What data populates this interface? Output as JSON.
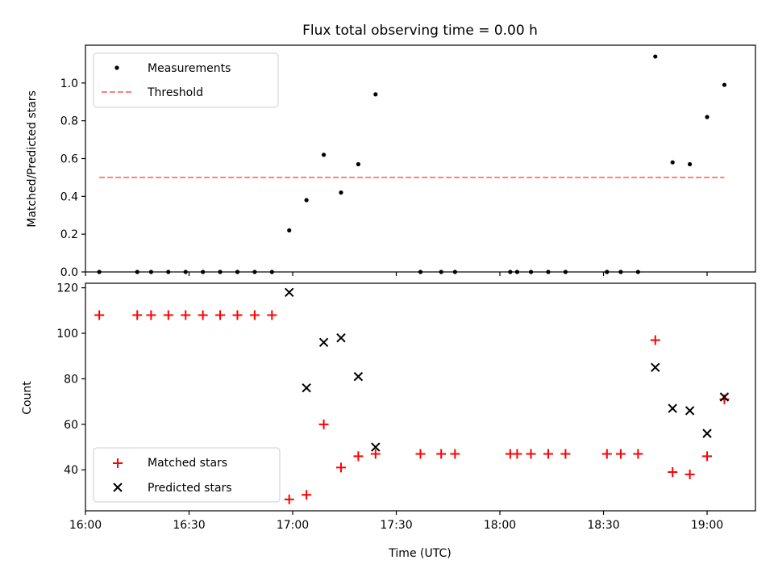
{
  "chart_data": [
    {
      "type": "scatter",
      "title": "Flux total observing time = 0.00 h",
      "xlabel": "",
      "ylabel": "Matched/Predicted stars",
      "xlim": [
        "16:00",
        "19:14"
      ],
      "ylim": [
        0,
        1.2
      ],
      "yticks": [
        "0.0",
        "0.2",
        "0.4",
        "0.6",
        "0.8",
        "1.0"
      ],
      "grid": false,
      "legend_position": "upper-left",
      "series": [
        {
          "name": "Measurements",
          "marker": "dot",
          "color": "#000000",
          "points": [
            {
              "x": "16:04",
              "y": 0.0
            },
            {
              "x": "16:15",
              "y": 0.0
            },
            {
              "x": "16:19",
              "y": 0.0
            },
            {
              "x": "16:24",
              "y": 0.0
            },
            {
              "x": "16:29",
              "y": 0.0
            },
            {
              "x": "16:34",
              "y": 0.0
            },
            {
              "x": "16:39",
              "y": 0.0
            },
            {
              "x": "16:44",
              "y": 0.0
            },
            {
              "x": "16:49",
              "y": 0.0
            },
            {
              "x": "16:54",
              "y": 0.0
            },
            {
              "x": "16:59",
              "y": 0.22
            },
            {
              "x": "17:04",
              "y": 0.38
            },
            {
              "x": "17:09",
              "y": 0.62
            },
            {
              "x": "17:14",
              "y": 0.42
            },
            {
              "x": "17:19",
              "y": 0.57
            },
            {
              "x": "17:24",
              "y": 0.94
            },
            {
              "x": "17:37",
              "y": 0.0
            },
            {
              "x": "17:43",
              "y": 0.0
            },
            {
              "x": "17:47",
              "y": 0.0
            },
            {
              "x": "18:03",
              "y": 0.0
            },
            {
              "x": "18:05",
              "y": 0.0
            },
            {
              "x": "18:09",
              "y": 0.0
            },
            {
              "x": "18:14",
              "y": 0.0
            },
            {
              "x": "18:19",
              "y": 0.0
            },
            {
              "x": "18:31",
              "y": 0.0
            },
            {
              "x": "18:35",
              "y": 0.0
            },
            {
              "x": "18:40",
              "y": 0.0
            },
            {
              "x": "18:45",
              "y": 1.14
            },
            {
              "x": "18:50",
              "y": 0.58
            },
            {
              "x": "18:55",
              "y": 0.57
            },
            {
              "x": "19:00",
              "y": 0.82
            },
            {
              "x": "19:05",
              "y": 0.99
            }
          ]
        },
        {
          "name": "Threshold",
          "style": "dashed-line",
          "color": "#ff7f7f",
          "points": [
            {
              "x": "16:04",
              "y": 0.5
            },
            {
              "x": "19:05",
              "y": 0.5
            }
          ]
        }
      ]
    },
    {
      "type": "scatter",
      "title": "",
      "xlabel": "Time (UTC)",
      "ylabel": "Count",
      "xlim": [
        "16:00",
        "19:14"
      ],
      "ylim": [
        22,
        122
      ],
      "xticks": [
        "16:00",
        "16:30",
        "17:00",
        "17:30",
        "18:00",
        "18:30",
        "19:00"
      ],
      "yticks": [
        "40",
        "60",
        "80",
        "100",
        "120"
      ],
      "grid": false,
      "legend_position": "lower-left",
      "series": [
        {
          "name": "Matched stars",
          "marker": "plus",
          "color": "#ff0000",
          "points": [
            {
              "x": "16:04",
              "y": 108
            },
            {
              "x": "16:15",
              "y": 108
            },
            {
              "x": "16:19",
              "y": 108
            },
            {
              "x": "16:24",
              "y": 108
            },
            {
              "x": "16:29",
              "y": 108
            },
            {
              "x": "16:34",
              "y": 108
            },
            {
              "x": "16:39",
              "y": 108
            },
            {
              "x": "16:44",
              "y": 108
            },
            {
              "x": "16:49",
              "y": 108
            },
            {
              "x": "16:54",
              "y": 108
            },
            {
              "x": "16:59",
              "y": 27
            },
            {
              "x": "17:04",
              "y": 29
            },
            {
              "x": "17:09",
              "y": 60
            },
            {
              "x": "17:14",
              "y": 41
            },
            {
              "x": "17:19",
              "y": 46
            },
            {
              "x": "17:24",
              "y": 47
            },
            {
              "x": "17:37",
              "y": 47
            },
            {
              "x": "17:43",
              "y": 47
            },
            {
              "x": "17:47",
              "y": 47
            },
            {
              "x": "18:03",
              "y": 47
            },
            {
              "x": "18:05",
              "y": 47
            },
            {
              "x": "18:09",
              "y": 47
            },
            {
              "x": "18:14",
              "y": 47
            },
            {
              "x": "18:19",
              "y": 47
            },
            {
              "x": "18:31",
              "y": 47
            },
            {
              "x": "18:35",
              "y": 47
            },
            {
              "x": "18:40",
              "y": 47
            },
            {
              "x": "18:45",
              "y": 97
            },
            {
              "x": "18:50",
              "y": 39
            },
            {
              "x": "18:55",
              "y": 38
            },
            {
              "x": "19:00",
              "y": 46
            },
            {
              "x": "19:05",
              "y": 71
            }
          ]
        },
        {
          "name": "Predicted stars",
          "marker": "cross",
          "color": "#000000",
          "points": [
            {
              "x": "16:59",
              "y": 118
            },
            {
              "x": "17:04",
              "y": 76
            },
            {
              "x": "17:09",
              "y": 96
            },
            {
              "x": "17:14",
              "y": 98
            },
            {
              "x": "17:19",
              "y": 81
            },
            {
              "x": "17:24",
              "y": 50
            },
            {
              "x": "18:45",
              "y": 85
            },
            {
              "x": "18:50",
              "y": 67
            },
            {
              "x": "18:55",
              "y": 66
            },
            {
              "x": "19:00",
              "y": 56
            },
            {
              "x": "19:05",
              "y": 72
            }
          ]
        }
      ]
    }
  ]
}
